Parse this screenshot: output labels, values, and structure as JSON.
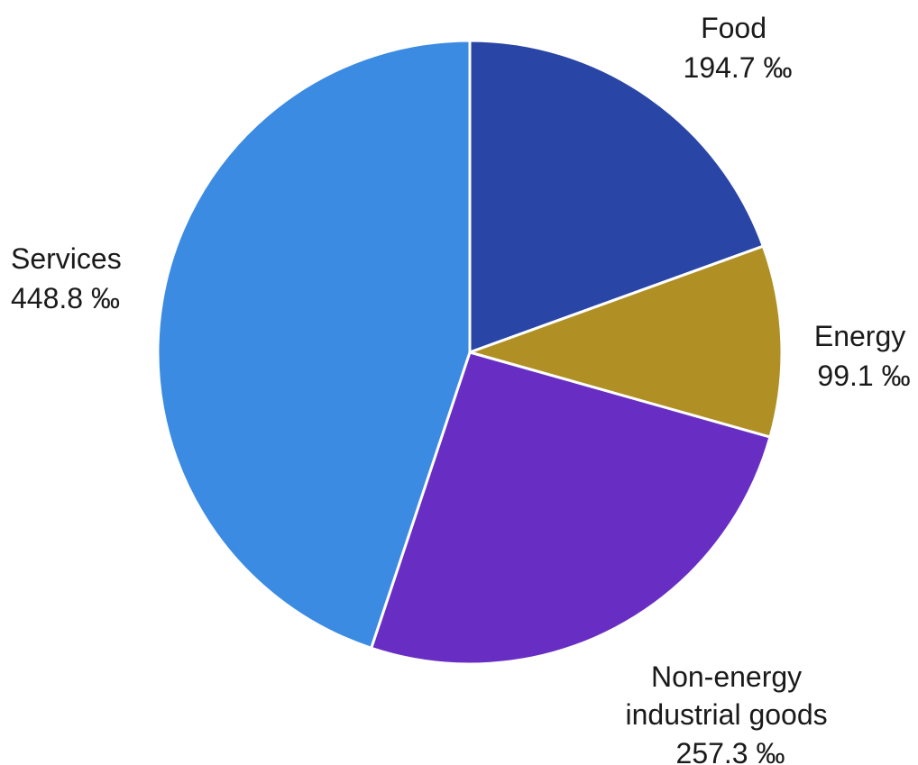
{
  "chart_data": {
    "type": "pie",
    "unit": "‰",
    "start": "12 o'clock",
    "direction": "clockwise",
    "slices": [
      {
        "name": "Food",
        "value": 194.7,
        "value_label": "194.7 ‰",
        "color": "#2945a6"
      },
      {
        "name": "Energy",
        "value": 99.1,
        "value_label": "99.1 ‰",
        "color": "#b08f24"
      },
      {
        "name": "Non-energy industrial goods",
        "value": 257.3,
        "value_label": "257.3 ‰",
        "color": "#682ec4"
      },
      {
        "name": "Services",
        "value": 448.8,
        "value_label": "448.8 ‰",
        "color": "#3b8be2"
      }
    ]
  }
}
